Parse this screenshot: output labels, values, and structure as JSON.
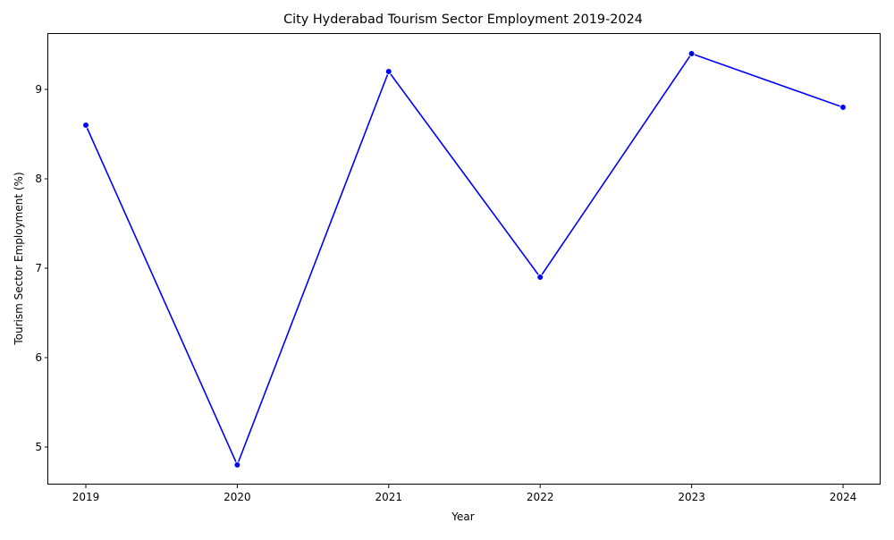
{
  "chart_data": {
    "type": "line",
    "title": "City Hyderabad Tourism Sector Employment 2019-2024",
    "xlabel": "Year",
    "ylabel": "Tourism Sector Employment (%)",
    "x": [
      "2019",
      "2020",
      "2021",
      "2022",
      "2023",
      "2024"
    ],
    "series": [
      {
        "values": [
          8.6,
          4.8,
          9.2,
          6.9,
          9.4,
          8.8
        ],
        "color": "#0000ff"
      }
    ],
    "yticks": [
      5,
      6,
      7,
      8,
      9
    ],
    "ylim": [
      4.58,
      9.62
    ],
    "grid": false,
    "legend": "none",
    "markers": "circle"
  }
}
